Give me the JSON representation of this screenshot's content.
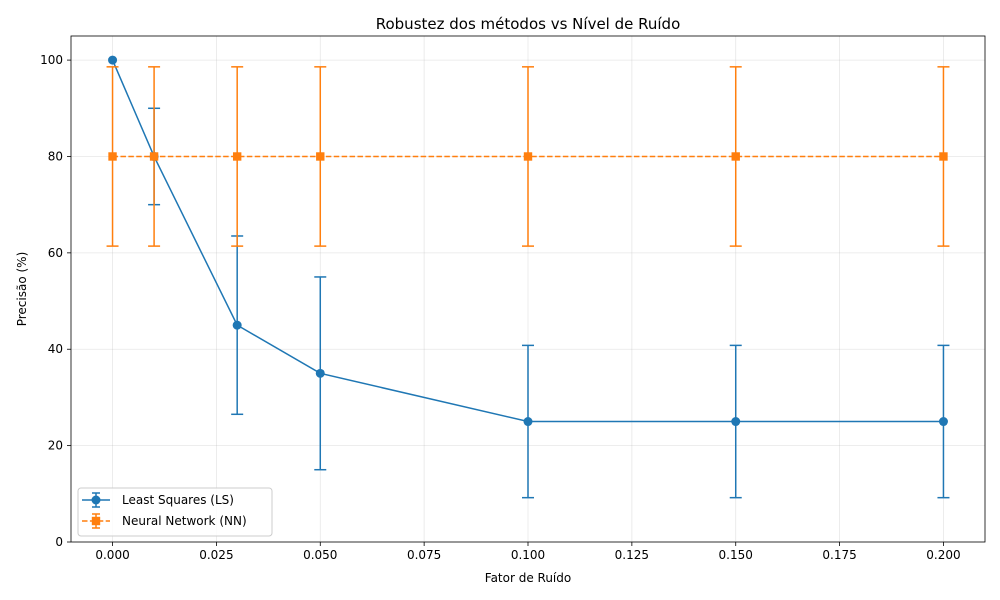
{
  "chart_data": {
    "type": "line",
    "title": "Robustez dos métodos vs Nível de Ruído",
    "xlabel": "Fator de Ruído",
    "ylabel": "Precisão (%)",
    "xlim": [
      -0.01,
      0.21
    ],
    "ylim": [
      0,
      105
    ],
    "x_ticks": [
      0.0,
      0.025,
      0.05,
      0.075,
      0.1,
      0.125,
      0.15,
      0.175,
      0.2
    ],
    "x_tick_labels": [
      "0.000",
      "0.025",
      "0.050",
      "0.075",
      "0.100",
      "0.125",
      "0.150",
      "0.175",
      "0.200"
    ],
    "y_ticks": [
      0,
      20,
      40,
      60,
      80,
      100
    ],
    "y_tick_labels": [
      "0",
      "20",
      "40",
      "60",
      "80",
      "100"
    ],
    "grid": true,
    "legend_position": "lower-left",
    "x": [
      0.0,
      0.01,
      0.03,
      0.05,
      0.1,
      0.15,
      0.2
    ],
    "series": [
      {
        "name": "Least Squares (LS)",
        "color": "#1f77b4",
        "marker": "circle",
        "linestyle": "solid",
        "values": [
          100,
          80,
          45,
          35,
          25,
          25,
          25
        ],
        "error": [
          0,
          10,
          18.5,
          20,
          15.8,
          15.8,
          15.8
        ]
      },
      {
        "name": "Neural Network (NN)",
        "color": "#ff7f0e",
        "marker": "square",
        "linestyle": "dashed",
        "values": [
          80,
          80,
          80,
          80,
          80,
          80,
          80
        ],
        "error": [
          18.6,
          18.6,
          18.6,
          18.6,
          18.6,
          18.6,
          18.6
        ]
      }
    ]
  }
}
